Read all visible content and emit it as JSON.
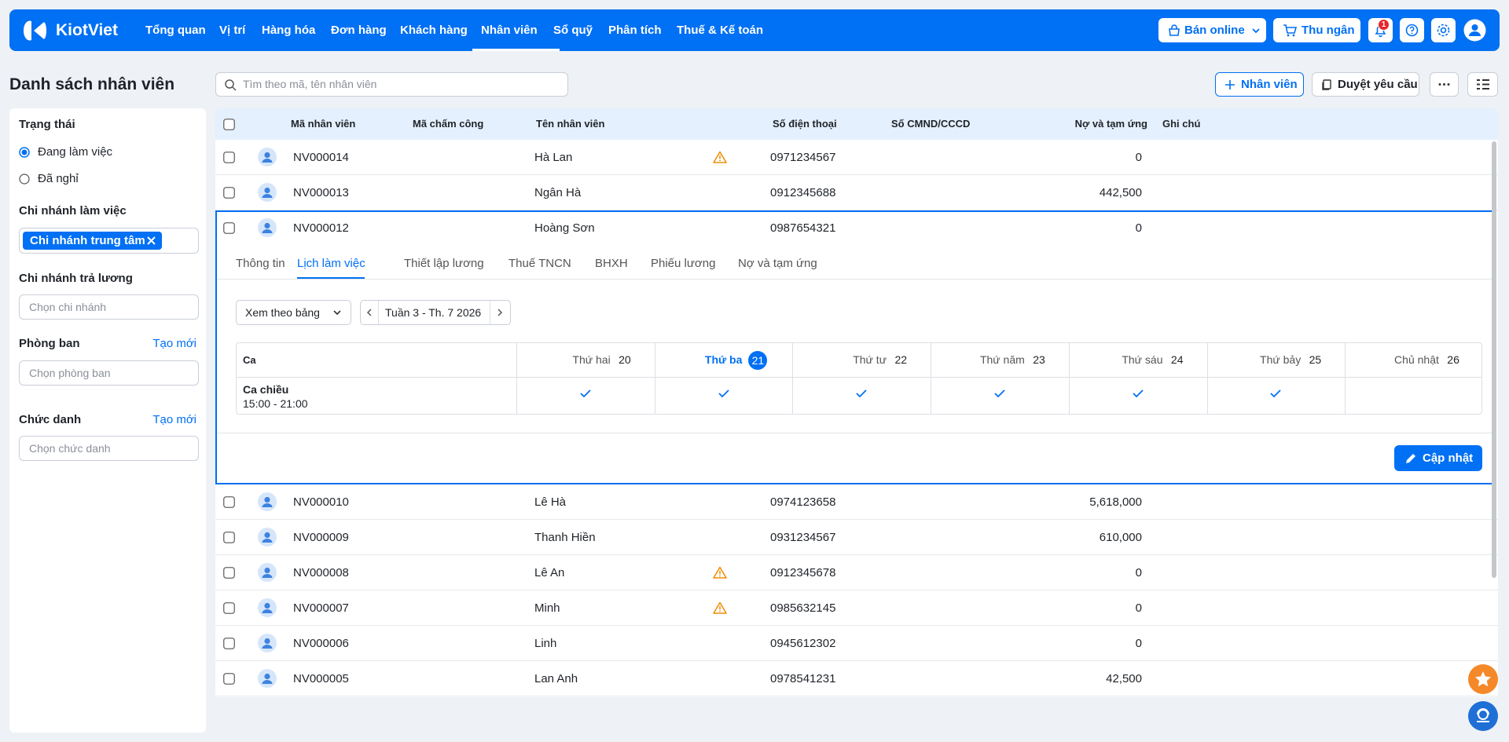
{
  "nav": {
    "brand": "KiotViet",
    "items": [
      "Tổng quan",
      "Vị trí",
      "Hàng hóa",
      "Đơn hàng",
      "Khách hàng",
      "Nhân viên",
      "Sổ quỹ",
      "Phân tích",
      "Thuế & Kế toán"
    ],
    "active": 5,
    "online": "Bán online",
    "cashier": "Thu ngân",
    "notifications": 1
  },
  "page": {
    "title": "Danh sách nhân viên",
    "search_placeholder": "Tìm theo mã, tên nhân viên",
    "add_button": "Nhân viên",
    "approve_button": "Duyệt yêu cầu"
  },
  "sidebar": {
    "status_label": "Trạng thái",
    "status_options": [
      "Đang làm việc",
      "Đã nghỉ"
    ],
    "status_selected": 0,
    "branch_label": "Chi nhánh làm việc",
    "branch_tag": "Chi nhánh trung tâm",
    "pay_branch_label": "Chi nhánh trả lương",
    "pay_branch_placeholder": "Chọn chi nhánh",
    "dept_label": "Phòng ban",
    "dept_create": "Tạo mới",
    "dept_placeholder": "Chọn phòng ban",
    "title_label": "Chức danh",
    "title_create": "Tạo mới",
    "title_placeholder": "Chọn chức danh"
  },
  "table": {
    "columns": [
      "Mã nhân viên",
      "Mã chấm công",
      "Tên nhân viên",
      "Số điện thoại",
      "Số CMND/CCCD",
      "Nợ và tạm ứng",
      "Ghi chú"
    ],
    "rows": [
      {
        "code": "NV000014",
        "name": "Hà Lan",
        "phone": "0971234567",
        "debt": "0",
        "warning": true
      },
      {
        "code": "NV000013",
        "name": "Ngân Hà",
        "phone": "0912345688",
        "debt": "442,500",
        "warning": false
      },
      {
        "code": "NV000012",
        "name": "Hoàng Sơn",
        "phone": "0987654321",
        "debt": "0",
        "warning": false
      },
      {
        "code": "NV000010",
        "name": "Lê Hà",
        "phone": "0974123658",
        "debt": "5,618,000",
        "warning": false
      },
      {
        "code": "NV000009",
        "name": "Thanh Hiền",
        "phone": "0931234567",
        "debt": "610,000",
        "warning": false
      },
      {
        "code": "NV000008",
        "name": "Lê An",
        "phone": "0912345678",
        "debt": "0",
        "warning": true
      },
      {
        "code": "NV000007",
        "name": "Minh",
        "phone": "0985632145",
        "debt": "0",
        "warning": true
      },
      {
        "code": "NV000006",
        "name": "Linh",
        "phone": "0945612302",
        "debt": "0",
        "warning": false
      },
      {
        "code": "NV000005",
        "name": "Lan Anh",
        "phone": "0978541231",
        "debt": "42,500",
        "warning": false
      }
    ],
    "expanded_row": 2
  },
  "detail": {
    "tabs": [
      "Thông tin",
      "Lịch làm việc",
      "Thiết lập lương",
      "Thuế TNCN",
      "BHXH",
      "Phiếu lương",
      "Nợ và tạm ứng"
    ],
    "active_tab": 1,
    "view_mode": "Xem theo bảng",
    "week": "Tuần 3 - Th. 7 2026",
    "shift_header": "Ca",
    "days": [
      {
        "name": "Thứ hai",
        "date": 20
      },
      {
        "name": "Thứ ba",
        "date": 21
      },
      {
        "name": "Thứ tư",
        "date": 22
      },
      {
        "name": "Thứ năm",
        "date": 23
      },
      {
        "name": "Thứ sáu",
        "date": 24
      },
      {
        "name": "Thứ bảy",
        "date": 25
      },
      {
        "name": "Chủ nhật",
        "date": 26
      }
    ],
    "today": 1,
    "shift": {
      "name": "Ca chiều",
      "time": "15:00 - 21:00",
      "checked": [
        true,
        true,
        true,
        true,
        true,
        true,
        false
      ]
    },
    "update_button": "Cập nhật"
  }
}
